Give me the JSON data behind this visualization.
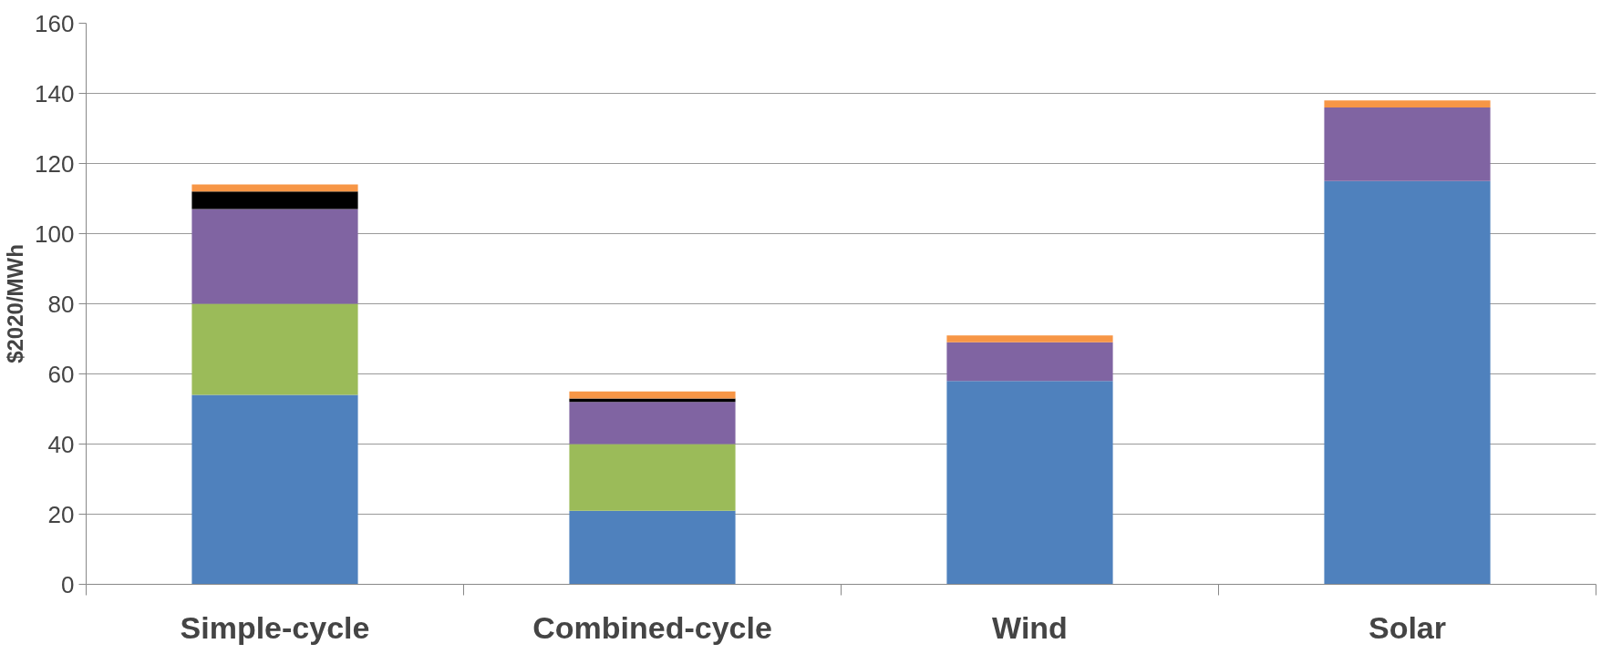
{
  "chart_data": {
    "type": "bar",
    "stacked": true,
    "ylabel": "$2020/MWh",
    "categories": [
      "Simple-cycle",
      "Combined-cycle",
      "Wind",
      "Solar"
    ],
    "series": [
      {
        "color": "#4f81bd",
        "values": [
          54,
          21,
          58,
          115
        ]
      },
      {
        "color": "#9bbb59",
        "values": [
          26,
          19,
          null,
          null
        ]
      },
      {
        "color": "#8064a2",
        "values": [
          27,
          12,
          11,
          21
        ]
      },
      {
        "color": "#000000",
        "values": [
          5,
          1,
          null,
          null
        ]
      },
      {
        "color": "#f79646",
        "values": [
          2,
          2,
          2,
          2
        ]
      }
    ],
    "ylim": [
      0,
      160
    ],
    "yticks": [
      0,
      20,
      40,
      60,
      80,
      100,
      120,
      140,
      160
    ],
    "grid": "y"
  }
}
